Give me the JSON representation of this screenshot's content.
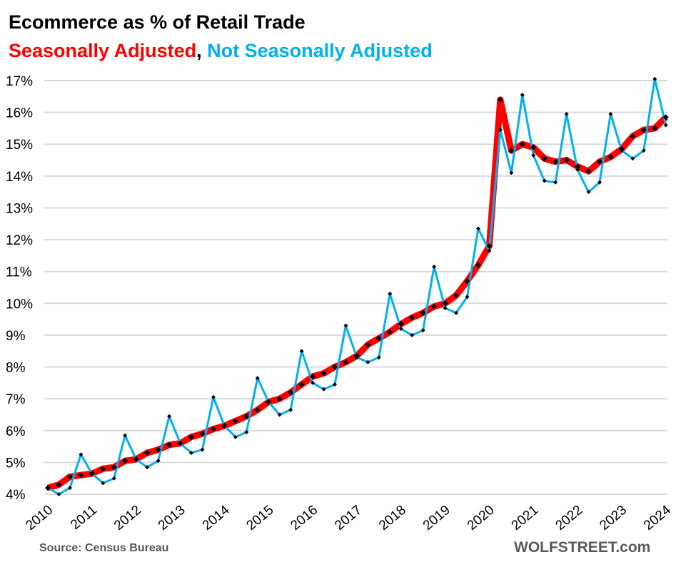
{
  "chart_data": {
    "type": "line",
    "title": "Ecommerce as % of Retail Trade",
    "subtitle_parts": [
      "Seasonally Adjusted",
      ",",
      "Not Seasonally Adjusted"
    ],
    "xlabel": "",
    "ylabel": "",
    "ylim": [
      4,
      17
    ],
    "yticks": [
      "4%",
      "5%",
      "6%",
      "7%",
      "8%",
      "9%",
      "10%",
      "11%",
      "12%",
      "13%",
      "14%",
      "15%",
      "16%",
      "17%"
    ],
    "xticks": [
      "2010",
      "2011",
      "2012",
      "2013",
      "2014",
      "2015",
      "2016",
      "2017",
      "2018",
      "2019",
      "2020",
      "2021",
      "2022",
      "2023",
      "2024"
    ],
    "x_start": "2010 Q1",
    "x_frequency": "quarterly",
    "grid": true,
    "series": [
      {
        "name": "Seasonally Adjusted",
        "color": "#ff0000",
        "values": [
          4.2,
          4.3,
          4.55,
          4.6,
          4.65,
          4.8,
          4.85,
          5.05,
          5.1,
          5.3,
          5.4,
          5.55,
          5.6,
          5.8,
          5.9,
          6.05,
          6.15,
          6.3,
          6.45,
          6.65,
          6.9,
          7.0,
          7.2,
          7.45,
          7.7,
          7.8,
          8.0,
          8.15,
          8.35,
          8.7,
          8.9,
          9.1,
          9.35,
          9.55,
          9.7,
          9.9,
          10.0,
          10.25,
          10.7,
          11.2,
          11.8,
          16.4,
          14.8,
          15.0,
          14.9,
          14.55,
          14.45,
          14.5,
          14.3,
          14.15,
          14.45,
          14.6,
          14.85,
          15.25,
          15.45,
          15.5,
          15.85
        ]
      },
      {
        "name": "Not Seasonally Adjusted",
        "color": "#00b0f0",
        "values": [
          4.2,
          4.0,
          4.2,
          5.25,
          4.65,
          4.35,
          4.5,
          5.85,
          5.1,
          4.85,
          5.05,
          6.45,
          5.6,
          5.3,
          5.4,
          7.05,
          6.15,
          5.8,
          5.95,
          7.65,
          6.9,
          6.5,
          6.65,
          8.5,
          7.5,
          7.3,
          7.45,
          9.3,
          8.3,
          8.15,
          8.3,
          10.3,
          9.2,
          9.0,
          9.15,
          11.15,
          9.85,
          9.7,
          10.2,
          12.35,
          11.65,
          15.45,
          14.1,
          16.55,
          14.65,
          13.85,
          13.8,
          15.95,
          14.2,
          13.5,
          13.8,
          15.95,
          14.8,
          14.55,
          14.8,
          17.05,
          15.6
        ]
      }
    ],
    "source": "Source: Census Bureau",
    "watermark": "WOLFSTREET.com"
  }
}
